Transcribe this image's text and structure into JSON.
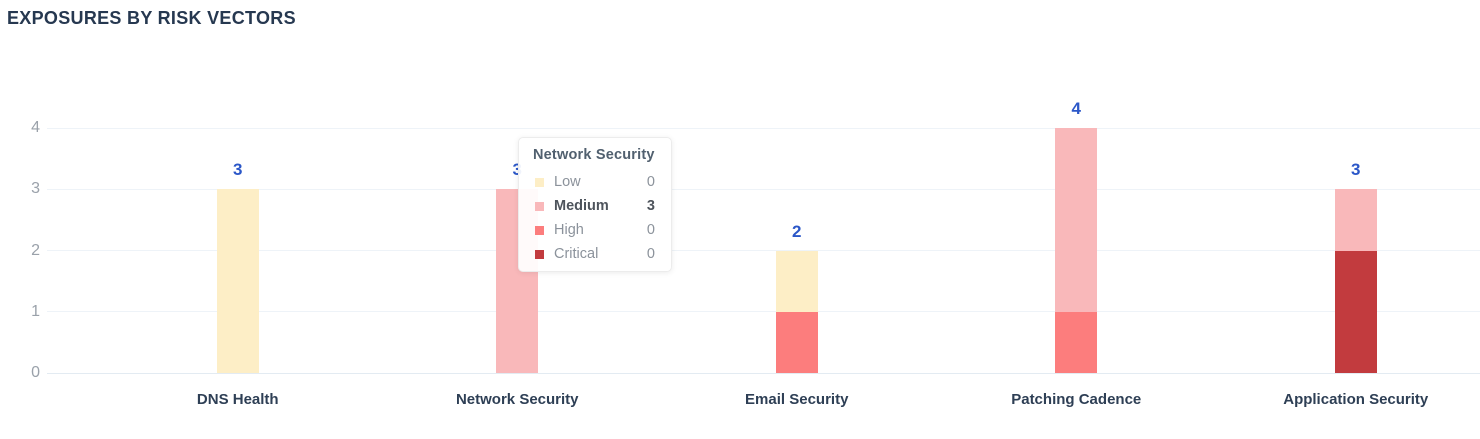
{
  "title": "EXPOSURES BY RISK VECTORS",
  "colors": {
    "low": "#FDEEC6",
    "medium": "#F9B8BA",
    "high": "#FC7D7D",
    "critical": "#C23B3E",
    "value_label": "#2B57C8",
    "heading_text": "#263850",
    "category_text": "#2E3F55",
    "axis_text": "#9AA1AA",
    "gridline": "#EEF3F8"
  },
  "chart_data": {
    "type": "bar",
    "stacked": true,
    "title": "EXPOSURES BY RISK VECTORS",
    "xlabel": "",
    "ylabel": "",
    "categories": [
      "DNS Health",
      "Network Security",
      "Email Security",
      "Patching Cadence",
      "Application Security"
    ],
    "series": [
      {
        "name": "Low",
        "color_key": "low",
        "values": [
          3,
          0,
          1,
          0,
          0
        ]
      },
      {
        "name": "Medium",
        "color_key": "medium",
        "values": [
          0,
          3,
          0,
          3,
          1
        ]
      },
      {
        "name": "High",
        "color_key": "high",
        "values": [
          0,
          0,
          1,
          1,
          0
        ]
      },
      {
        "name": "Critical",
        "color_key": "critical",
        "values": [
          0,
          0,
          0,
          0,
          2
        ]
      }
    ],
    "stack_order_bottom_to_top": [
      "Critical",
      "High",
      "Medium",
      "Low"
    ],
    "totals": [
      3,
      3,
      2,
      4,
      3
    ],
    "y_ticks": [
      0,
      1,
      2,
      3,
      4
    ],
    "ylim": [
      0,
      4
    ],
    "grid": true,
    "legend_position": "none"
  },
  "tooltip": {
    "title": "Network Security",
    "rows": [
      {
        "label": "Low",
        "value": "0",
        "color_key": "low",
        "bold": false
      },
      {
        "label": "Medium",
        "value": "3",
        "color_key": "medium",
        "bold": true
      },
      {
        "label": "High",
        "value": "0",
        "color_key": "high",
        "bold": false
      },
      {
        "label": "Critical",
        "value": "0",
        "color_key": "critical",
        "bold": false
      }
    ]
  }
}
